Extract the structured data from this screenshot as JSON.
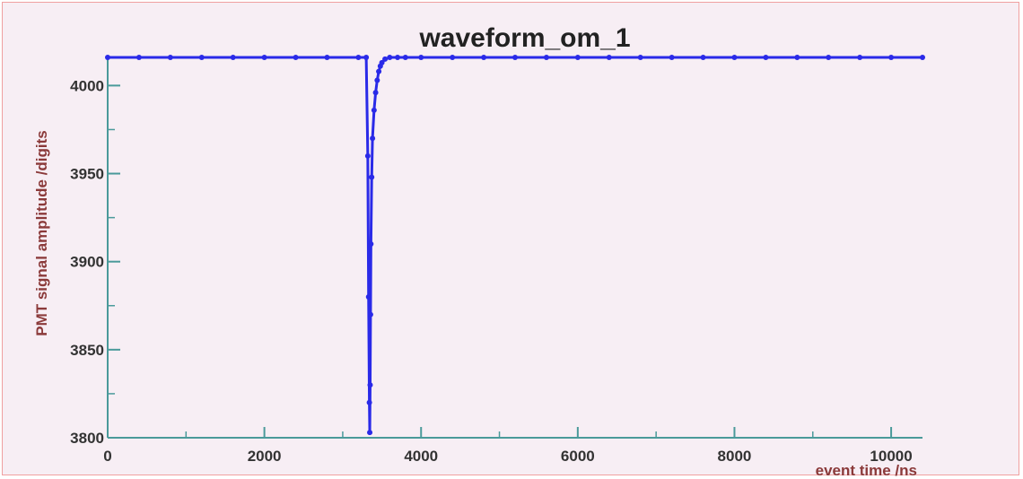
{
  "chart_data": {
    "type": "scatter",
    "title": "waveform_om_1",
    "xlabel": "event time /ns",
    "ylabel": "PMT signal amplitude /digits",
    "xlim": [
      0,
      10400
    ],
    "ylim": [
      3800,
      4017
    ],
    "x_ticks": [
      0,
      2000,
      4000,
      6000,
      8000,
      10000
    ],
    "x_tick_labels": [
      "0",
      "2000",
      "4000",
      "6000",
      "8000",
      "10000"
    ],
    "y_ticks": [
      3800,
      3850,
      3900,
      3950,
      4000
    ],
    "y_tick_labels": [
      "3800",
      "3850",
      "3900",
      "3950",
      "4000"
    ],
    "grid": false,
    "colors": {
      "series": "#2a2ae8",
      "axis": "#4a9a9a",
      "frame": "#f0a0a0",
      "background": "#f7eef4"
    },
    "series": [
      {
        "x": [
          0,
          400,
          800,
          1200,
          1600,
          2000,
          2400,
          2800,
          3200,
          3300,
          3320,
          3330,
          3340,
          3345,
          3350,
          3355,
          3360,
          3370,
          3380,
          3400,
          3420,
          3440,
          3460,
          3480,
          3500,
          3540,
          3600,
          3700,
          3800,
          4000,
          4400,
          4800,
          5200,
          5600,
          6000,
          6400,
          6800,
          7200,
          7600,
          8000,
          8400,
          8800,
          9200,
          9600,
          10000,
          10400
        ],
        "y": [
          4016,
          4016,
          4016,
          4016,
          4016,
          4016,
          4016,
          4016,
          4016,
          4016,
          3960,
          3880,
          3820,
          3803,
          3830,
          3870,
          3910,
          3948,
          3970,
          3986,
          3996,
          4003,
          4008,
          4011,
          4013,
          4015,
          4016,
          4016,
          4016,
          4016,
          4016,
          4016,
          4016,
          4016,
          4016,
          4016,
          4016,
          4016,
          4016,
          4016,
          4016,
          4016,
          4016,
          4016,
          4016,
          4016
        ]
      }
    ]
  }
}
